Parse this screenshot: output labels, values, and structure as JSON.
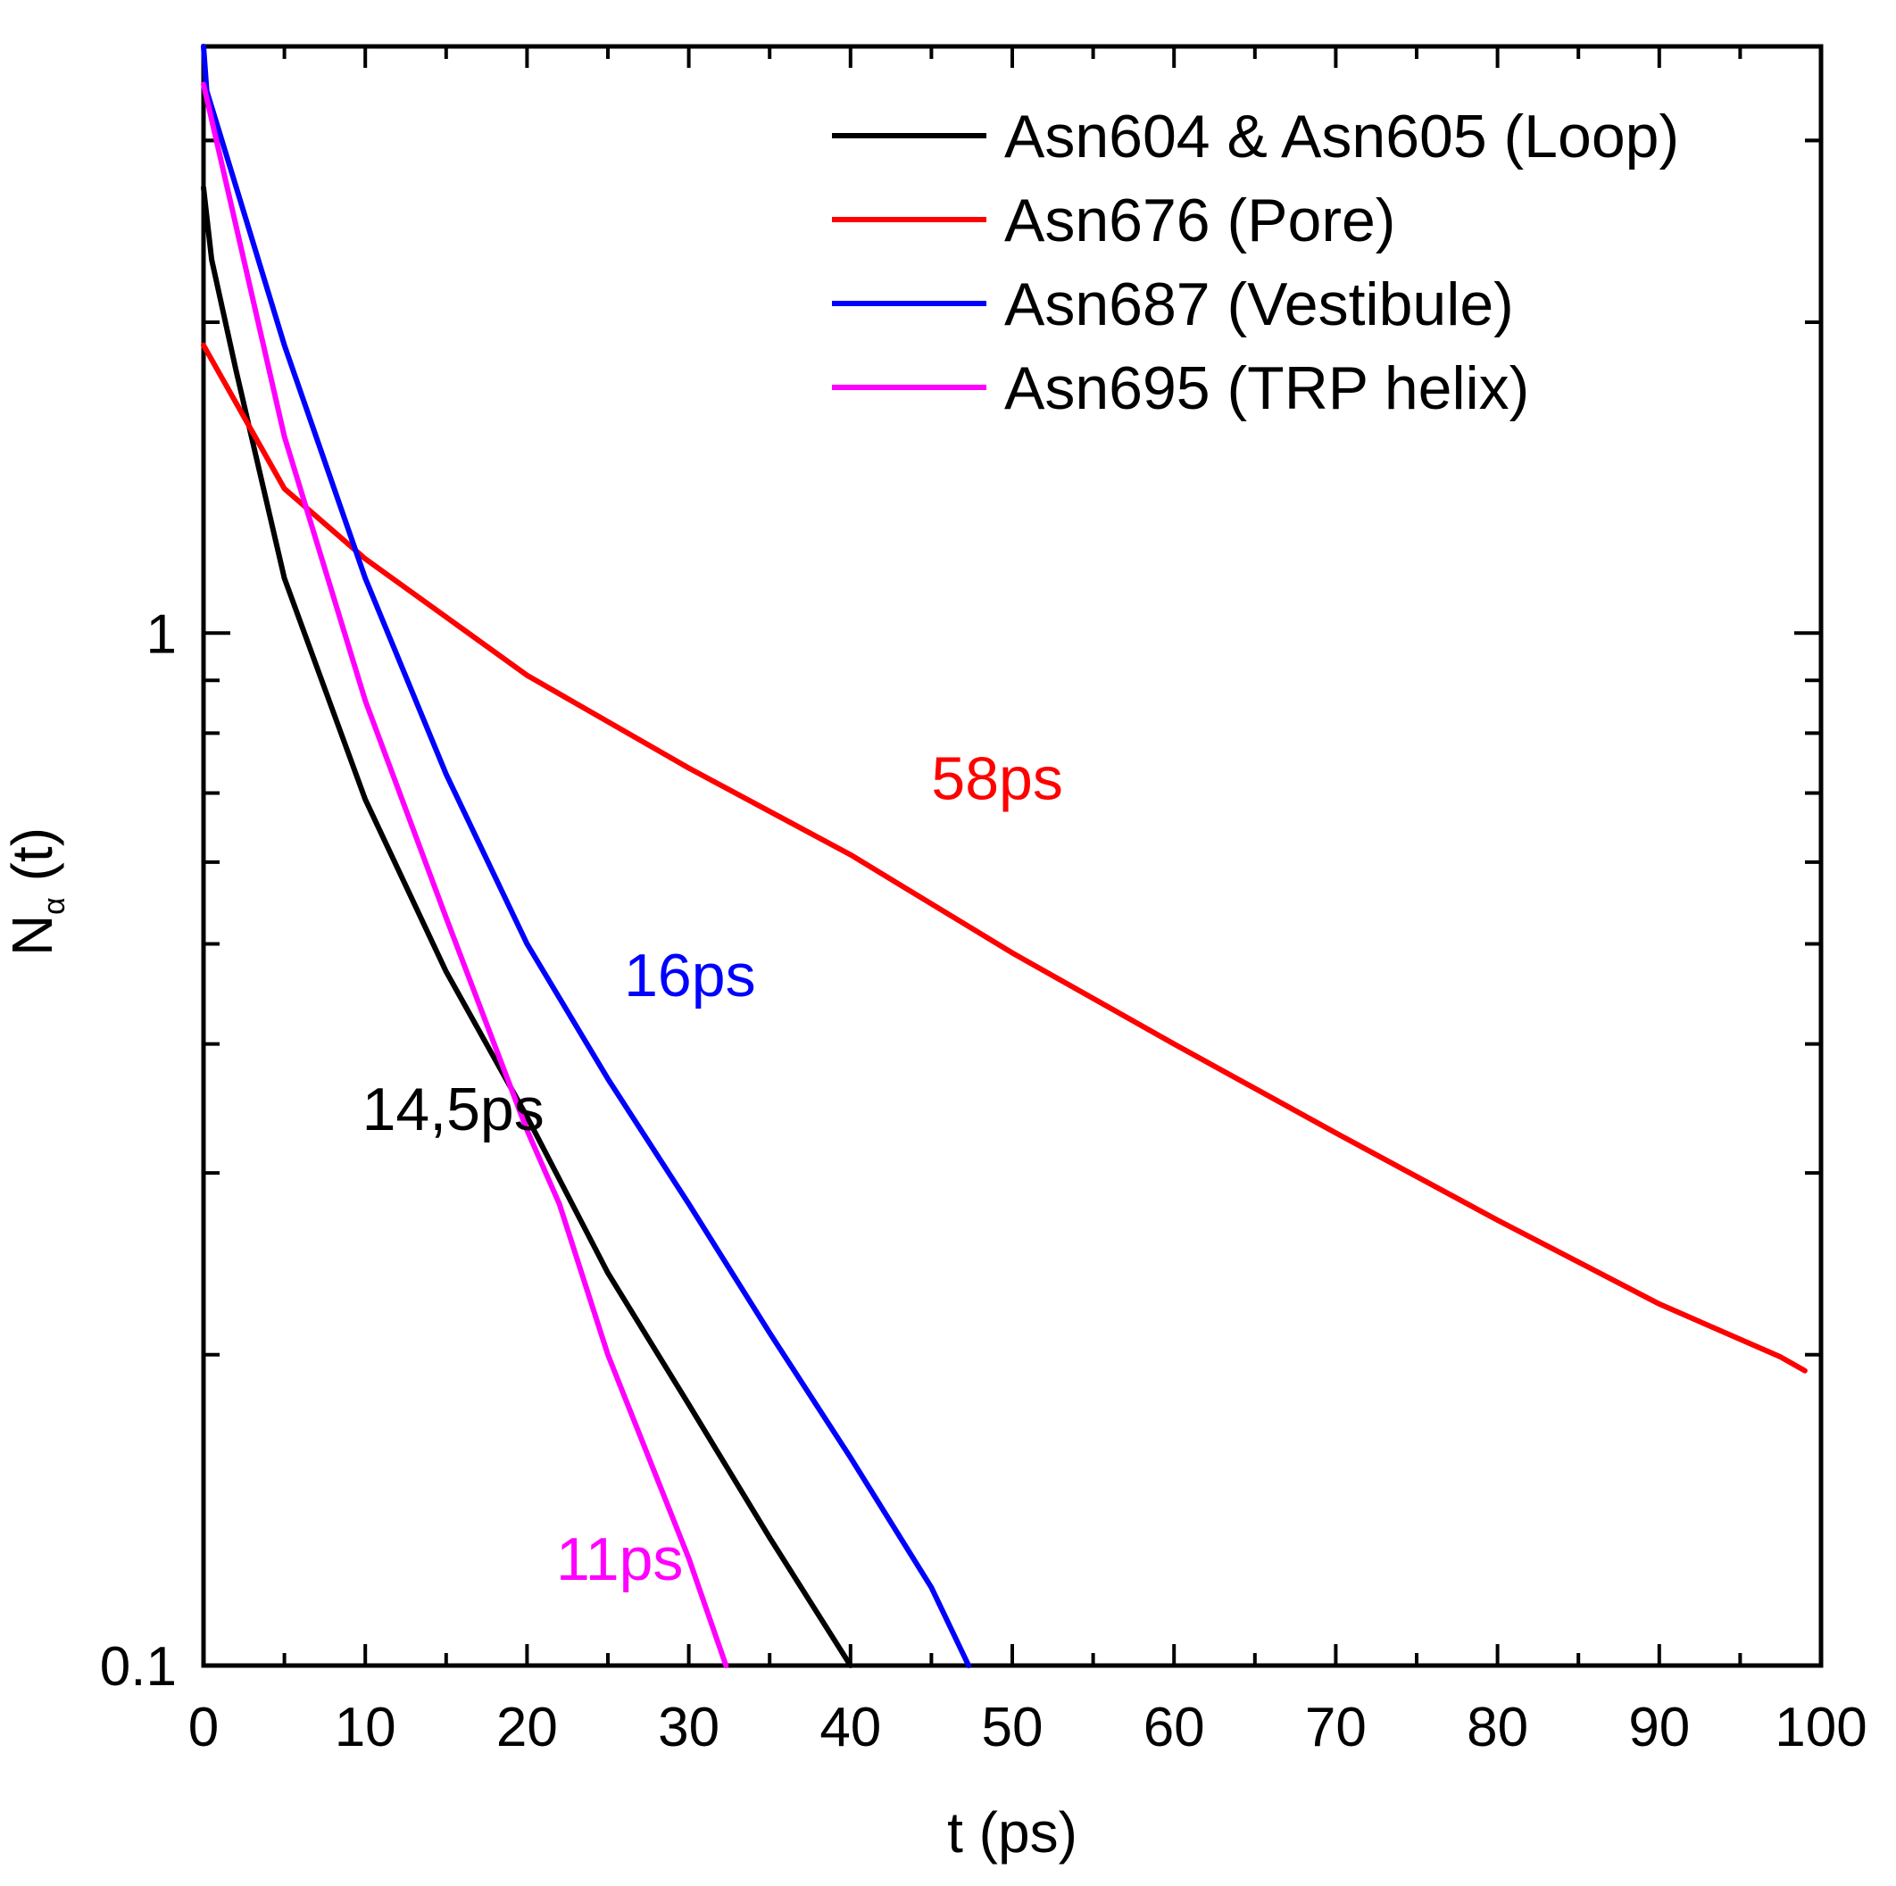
{
  "chart_data": {
    "type": "line",
    "title": "",
    "xlabel": "t (ps)",
    "ylabel": "N",
    "ylabel_subscript": "α",
    "ylabel_suffix": " (t)",
    "xlim": [
      0,
      100
    ],
    "ylim": [
      0.1,
      3.7
    ],
    "yscale": "log",
    "grid": false,
    "legend_position": "top-right",
    "x_ticks": [
      0,
      10,
      20,
      30,
      40,
      50,
      60,
      70,
      80,
      90,
      100
    ],
    "x_tick_labels": [
      "0",
      "10",
      "20",
      "30",
      "40",
      "50",
      "60",
      "70",
      "80",
      "90",
      "100"
    ],
    "y_tick_labels": [
      {
        "value": 0.1,
        "label": "0.1"
      },
      {
        "value": 1,
        "label": "1"
      }
    ],
    "series": [
      {
        "name": "Asn604 & Asn605 (Loop)",
        "color": "#000000",
        "points": [
          [
            0,
            2.7
          ],
          [
            0.5,
            2.3
          ],
          [
            2,
            1.8
          ],
          [
            5,
            1.13
          ],
          [
            10,
            0.69
          ],
          [
            15,
            0.47
          ],
          [
            20,
            0.34
          ],
          [
            25,
            0.24
          ],
          [
            30,
            0.179
          ],
          [
            35,
            0.133
          ],
          [
            40,
            0.1
          ]
        ]
      },
      {
        "name": "Asn676 (Pore)",
        "color": "#ff0000",
        "points": [
          [
            0,
            1.9
          ],
          [
            5,
            1.38
          ],
          [
            10,
            1.18
          ],
          [
            20,
            0.91
          ],
          [
            30,
            0.74
          ],
          [
            40,
            0.61
          ],
          [
            50,
            0.49
          ],
          [
            60,
            0.4
          ],
          [
            70,
            0.328
          ],
          [
            80,
            0.27
          ],
          [
            90,
            0.224
          ],
          [
            97.5,
            0.199
          ],
          [
            99,
            0.193
          ]
        ]
      },
      {
        "name": "Asn687 (Vestibule)",
        "color": "#0000ff",
        "points": [
          [
            0,
            3.7
          ],
          [
            0.2,
            3.35
          ],
          [
            1,
            3.05
          ],
          [
            5,
            1.9
          ],
          [
            10,
            1.13
          ],
          [
            15,
            0.73
          ],
          [
            20,
            0.5
          ],
          [
            25,
            0.37
          ],
          [
            30,
            0.28
          ],
          [
            35,
            0.21
          ],
          [
            40,
            0.159
          ],
          [
            45,
            0.119
          ],
          [
            47.3,
            0.1
          ]
        ]
      },
      {
        "name": "Asn695 (TRP helix)",
        "color": "#ff00ff",
        "points": [
          [
            0,
            3.4
          ],
          [
            5,
            1.55
          ],
          [
            10,
            0.86
          ],
          [
            15,
            0.53
          ],
          [
            20,
            0.33
          ],
          [
            22,
            0.28
          ],
          [
            25,
            0.2
          ],
          [
            30,
            0.127
          ],
          [
            32.3,
            0.1
          ]
        ]
      }
    ],
    "annotations": [
      {
        "text": "58ps",
        "color": "#ff0000",
        "x": 45,
        "y": 0.69
      },
      {
        "text": "16ps",
        "color": "#0000ff",
        "x": 26,
        "y": 0.445
      },
      {
        "text": "14,5ps",
        "color": "#000000",
        "x": 9.8,
        "y": 0.33
      },
      {
        "text": "11ps",
        "color": "#ff00ff",
        "x": 21.8,
        "y": 0.121
      }
    ]
  }
}
